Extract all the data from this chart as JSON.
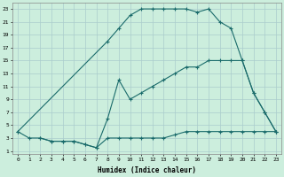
{
  "xlabel": "Humidex (Indice chaleur)",
  "bg_color": "#cceedd",
  "grid_color": "#aacccc",
  "line_color": "#1a6b6b",
  "xlim": [
    -0.5,
    23.5
  ],
  "ylim": [
    0.5,
    24
  ],
  "xticks": [
    0,
    1,
    2,
    3,
    4,
    5,
    6,
    7,
    8,
    9,
    10,
    11,
    12,
    13,
    14,
    15,
    16,
    17,
    18,
    19,
    20,
    21,
    22,
    23
  ],
  "yticks": [
    1,
    3,
    5,
    7,
    9,
    11,
    13,
    15,
    17,
    19,
    21,
    23
  ],
  "line1_x": [
    0,
    1,
    2,
    3,
    4,
    5,
    6,
    7,
    8,
    9,
    10,
    11,
    12,
    13,
    14,
    15,
    16,
    17,
    18,
    19,
    20,
    21,
    22,
    23
  ],
  "line1_y": [
    4,
    3,
    3,
    2.5,
    2.5,
    2.5,
    2,
    1.5,
    3,
    3,
    3,
    3,
    3,
    3,
    3.5,
    4,
    4,
    4,
    4,
    4,
    4,
    4,
    4,
    4
  ],
  "line2_x": [
    0,
    8,
    9,
    10,
    11,
    12,
    13,
    14,
    15,
    16,
    17,
    18,
    19,
    20,
    21,
    22,
    23
  ],
  "line2_y": [
    4,
    18,
    20,
    22,
    23,
    23,
    23,
    23,
    23,
    22.5,
    23,
    21,
    20,
    15,
    10,
    7,
    4
  ],
  "line3_x": [
    2,
    3,
    4,
    5,
    6,
    7,
    8,
    9,
    10,
    11,
    12,
    13,
    14,
    15,
    16,
    17,
    18,
    19,
    20,
    21,
    22,
    23
  ],
  "line3_y": [
    3,
    2.5,
    2.5,
    2.5,
    2,
    1.5,
    6,
    12,
    9,
    10,
    11,
    12,
    13,
    14,
    14,
    15,
    15,
    15,
    15,
    10,
    7,
    4
  ]
}
